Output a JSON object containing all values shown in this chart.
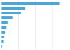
{
  "values": [
    34500,
    14000,
    11500,
    6800,
    3800,
    2800,
    2200,
    1700,
    1300,
    400
  ],
  "bar_color": "#4da6d9",
  "background_color": "#ffffff",
  "grid_color": "#dddddd",
  "xlim": [
    0,
    40000
  ]
}
